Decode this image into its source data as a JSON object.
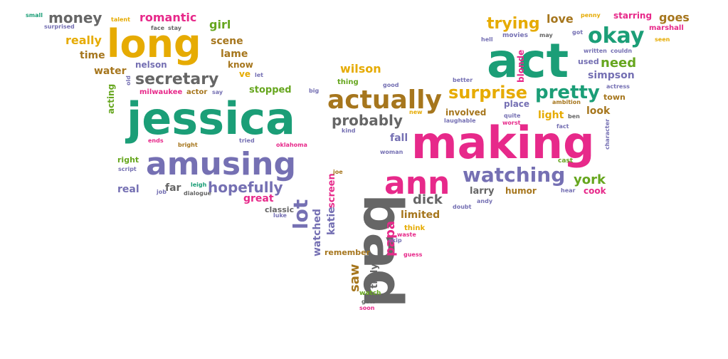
{
  "palette": {
    "green": "#1b9e77",
    "gold": "#e6ab02",
    "purple": "#7570b3",
    "pink": "#e7298a",
    "lime": "#66a61e",
    "brown": "#a6761d",
    "grey": "#666666",
    "orange": "#d95f02"
  },
  "words": [
    {
      "text": "jessica",
      "color": "green"
    },
    {
      "text": "bad",
      "color": "grey"
    },
    {
      "text": "making",
      "color": "pink"
    },
    {
      "text": "act",
      "color": "green"
    },
    {
      "text": "long",
      "color": "gold"
    },
    {
      "text": "amusing",
      "color": "purple"
    },
    {
      "text": "ann",
      "color": "pink"
    },
    {
      "text": "actually",
      "color": "brown"
    },
    {
      "text": "okay",
      "color": "green"
    },
    {
      "text": "watching",
      "color": "purple"
    },
    {
      "text": "surprise",
      "color": "gold"
    },
    {
      "text": "pretty",
      "color": "green"
    },
    {
      "text": "secretary",
      "color": "grey"
    },
    {
      "text": "lot",
      "color": "purple"
    },
    {
      "text": "hopefully",
      "color": "purple"
    },
    {
      "text": "probably",
      "color": "grey"
    },
    {
      "text": "money",
      "color": "grey"
    },
    {
      "text": "trying",
      "color": "gold"
    },
    {
      "text": "york",
      "color": "lime"
    },
    {
      "text": "need",
      "color": "lime"
    },
    {
      "text": "papa",
      "color": "pink"
    },
    {
      "text": "dick",
      "color": "grey"
    },
    {
      "text": "saw",
      "color": "brown"
    },
    {
      "text": "romantic",
      "color": "pink"
    },
    {
      "text": "really",
      "color": "gold"
    },
    {
      "text": "scene",
      "color": "brown"
    },
    {
      "text": "lame",
      "color": "brown"
    },
    {
      "text": "girl",
      "color": "lime"
    },
    {
      "text": "love",
      "color": "brown"
    },
    {
      "text": "goes",
      "color": "brown"
    },
    {
      "text": "simpson",
      "color": "purple"
    },
    {
      "text": "water",
      "color": "brown"
    },
    {
      "text": "wilson",
      "color": "gold"
    },
    {
      "text": "time",
      "color": "brown"
    },
    {
      "text": "know",
      "color": "brown"
    },
    {
      "text": "blonde",
      "color": "pink"
    },
    {
      "text": "watched",
      "color": "purple"
    },
    {
      "text": "katie",
      "color": "purple"
    },
    {
      "text": "screen",
      "color": "pink"
    },
    {
      "text": "truly",
      "color": "grey"
    },
    {
      "text": "limited",
      "color": "brown"
    },
    {
      "text": "fall",
      "color": "purple"
    },
    {
      "text": "look",
      "color": "brown"
    },
    {
      "text": "light",
      "color": "gold"
    },
    {
      "text": "involved",
      "color": "brown"
    },
    {
      "text": "place",
      "color": "purple"
    },
    {
      "text": "larry",
      "color": "grey"
    },
    {
      "text": "humor",
      "color": "brown"
    },
    {
      "text": "real",
      "color": "purple"
    },
    {
      "text": "far",
      "color": "grey"
    },
    {
      "text": "great",
      "color": "pink"
    },
    {
      "text": "stopped",
      "color": "lime"
    },
    {
      "text": "nelson",
      "color": "purple"
    },
    {
      "text": "acting",
      "color": "lime"
    },
    {
      "text": "remember",
      "color": "brown"
    },
    {
      "text": "cook",
      "color": "pink"
    },
    {
      "text": "classic",
      "color": "grey"
    },
    {
      "text": "think",
      "color": "gold"
    },
    {
      "text": "ve",
      "color": "gold"
    },
    {
      "text": "right",
      "color": "lime"
    },
    {
      "text": "milwaukee",
      "color": "pink"
    },
    {
      "text": "actor",
      "color": "brown"
    },
    {
      "text": "thing",
      "color": "lime"
    },
    {
      "text": "used",
      "color": "purple"
    },
    {
      "text": "town",
      "color": "brown"
    },
    {
      "text": "starring",
      "color": "pink"
    },
    {
      "text": "marshall",
      "color": "pink"
    },
    {
      "text": "movies",
      "color": "purple"
    },
    {
      "text": "talent",
      "color": "gold"
    },
    {
      "text": "small",
      "color": "green"
    },
    {
      "text": "surprised",
      "color": "purple"
    },
    {
      "text": "face",
      "color": "grey"
    },
    {
      "text": "stay",
      "color": "grey"
    },
    {
      "text": "hell",
      "color": "purple"
    },
    {
      "text": "may",
      "color": "grey"
    },
    {
      "text": "got",
      "color": "purple"
    },
    {
      "text": "penny",
      "color": "gold"
    },
    {
      "text": "seen",
      "color": "gold"
    },
    {
      "text": "written",
      "color": "purple"
    },
    {
      "text": "couldn",
      "color": "purple"
    },
    {
      "text": "actress",
      "color": "purple"
    },
    {
      "text": "character",
      "color": "purple"
    },
    {
      "text": "old",
      "color": "purple"
    },
    {
      "text": "let",
      "color": "purple"
    },
    {
      "text": "say",
      "color": "purple"
    },
    {
      "text": "good",
      "color": "purple"
    },
    {
      "text": "big",
      "color": "purple"
    },
    {
      "text": "new",
      "color": "gold"
    },
    {
      "text": "kind",
      "color": "purple"
    },
    {
      "text": "better",
      "color": "purple"
    },
    {
      "text": "laughable",
      "color": "purple"
    },
    {
      "text": "quite",
      "color": "purple"
    },
    {
      "text": "worst",
      "color": "pink"
    },
    {
      "text": "ambition",
      "color": "brown"
    },
    {
      "text": "ben",
      "color": "grey"
    },
    {
      "text": "fact",
      "color": "purple"
    },
    {
      "text": "ends",
      "color": "pink"
    },
    {
      "text": "bright",
      "color": "brown"
    },
    {
      "text": "tried",
      "color": "purple"
    },
    {
      "text": "oklahoma",
      "color": "pink"
    },
    {
      "text": "woman",
      "color": "purple"
    },
    {
      "text": "script",
      "color": "purple"
    },
    {
      "text": "job",
      "color": "purple"
    },
    {
      "text": "leigh",
      "color": "green"
    },
    {
      "text": "dialogue",
      "color": "grey"
    },
    {
      "text": "joe",
      "color": "brown"
    },
    {
      "text": "cast",
      "color": "lime"
    },
    {
      "text": "hear",
      "color": "purple"
    },
    {
      "text": "andy",
      "color": "purple"
    },
    {
      "text": "doubt",
      "color": "purple"
    },
    {
      "text": "skip",
      "color": "purple"
    },
    {
      "text": "waste",
      "color": "pink"
    },
    {
      "text": "guess",
      "color": "pink"
    },
    {
      "text": "luke",
      "color": "purple"
    },
    {
      "text": "watch",
      "color": "lime"
    },
    {
      "text": "gets",
      "color": "grey"
    },
    {
      "text": "soon",
      "color": "pink"
    }
  ]
}
